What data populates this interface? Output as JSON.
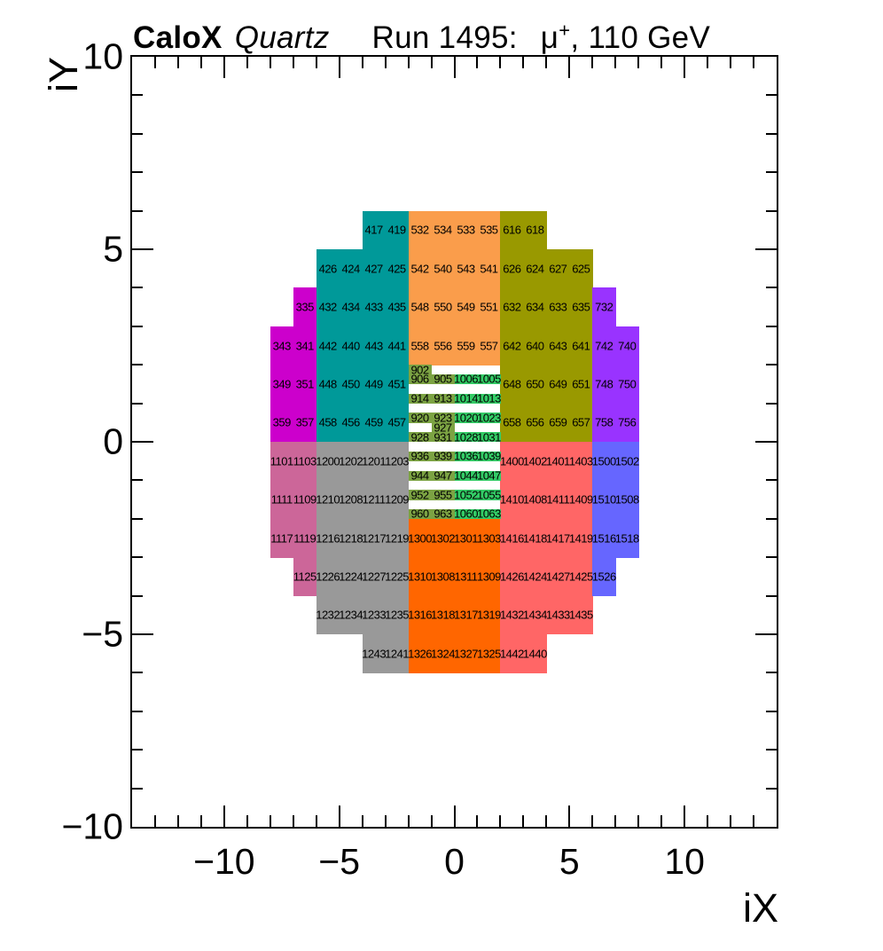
{
  "title": {
    "brand": "CaloX",
    "variant": "Quartz",
    "run": "Run 1495:",
    "particle": "μ",
    "particle_sup": "+",
    "energy": ", 110 GeV"
  },
  "chart_data": {
    "type": "heatmap",
    "title": "CaloX Quartz Run 1495: μ+, 110 GeV",
    "subtitle": "Calorimeter channel map colored by readout region, cells labeled by channel number",
    "xlabel": "iX",
    "ylabel": "iY",
    "xlim": [
      -14,
      14
    ],
    "ylim": [
      -10,
      10
    ],
    "grid": false,
    "x_ticks": [
      {
        "v": -10,
        "label": "−10"
      },
      {
        "v": -5,
        "label": "−5"
      },
      {
        "v": 0,
        "label": "0"
      },
      {
        "v": 5,
        "label": "5"
      },
      {
        "v": 10,
        "label": "10"
      }
    ],
    "y_ticks": [
      {
        "v": 10,
        "label": "10"
      },
      {
        "v": 5,
        "label": "5"
      },
      {
        "v": 0,
        "label": "0"
      },
      {
        "v": -5,
        "label": "−5"
      },
      {
        "v": -10,
        "label": "−10"
      }
    ],
    "minor_tick_step": 1,
    "regions": [
      {
        "name": "magenta-upper-left",
        "color": "#CC00CC",
        "h": 1,
        "cells": [
          [
            -7,
            3,
            "335"
          ],
          [
            -8,
            2,
            "343"
          ],
          [
            -7,
            2,
            "341"
          ],
          [
            -8,
            1,
            "349"
          ],
          [
            -7,
            1,
            "351"
          ],
          [
            -8,
            0,
            "359"
          ],
          [
            -7,
            0,
            "357"
          ]
        ]
      },
      {
        "name": "teal-upper-left",
        "color": "#009999",
        "h": 1,
        "cells": [
          [
            -4,
            5,
            "417"
          ],
          [
            -3,
            5,
            "419"
          ],
          [
            -6,
            4,
            "426"
          ],
          [
            -5,
            4,
            "424"
          ],
          [
            -4,
            4,
            "427"
          ],
          [
            -3,
            4,
            "425"
          ],
          [
            -6,
            3,
            "432"
          ],
          [
            -5,
            3,
            "434"
          ],
          [
            -4,
            3,
            "433"
          ],
          [
            -3,
            3,
            "435"
          ],
          [
            -6,
            2,
            "442"
          ],
          [
            -5,
            2,
            "440"
          ],
          [
            -4,
            2,
            "443"
          ],
          [
            -3,
            2,
            "441"
          ],
          [
            -6,
            1,
            "448"
          ],
          [
            -5,
            1,
            "450"
          ],
          [
            -4,
            1,
            "449"
          ],
          [
            -3,
            1,
            "451"
          ],
          [
            -6,
            0,
            "458"
          ],
          [
            -5,
            0,
            "456"
          ],
          [
            -4,
            0,
            "459"
          ],
          [
            -3,
            0,
            "457"
          ]
        ]
      },
      {
        "name": "orange-upper-center",
        "color": "#FA9D4B",
        "h": 1,
        "cells": [
          [
            -2,
            5,
            "532"
          ],
          [
            -1,
            5,
            "534"
          ],
          [
            0,
            5,
            "533"
          ],
          [
            1,
            5,
            "535"
          ],
          [
            -2,
            4,
            "542"
          ],
          [
            -1,
            4,
            "540"
          ],
          [
            0,
            4,
            "543"
          ],
          [
            1,
            4,
            "541"
          ],
          [
            -2,
            3,
            "548"
          ],
          [
            -1,
            3,
            "550"
          ],
          [
            0,
            3,
            "549"
          ],
          [
            1,
            3,
            "551"
          ],
          [
            -2,
            2,
            "558"
          ],
          [
            -1,
            2,
            "556"
          ],
          [
            0,
            2,
            "559"
          ],
          [
            1,
            2,
            "557"
          ]
        ]
      },
      {
        "name": "olive-upper-right",
        "color": "#999900",
        "h": 1,
        "cells": [
          [
            2,
            5,
            "616"
          ],
          [
            3,
            5,
            "618"
          ],
          [
            2,
            4,
            "626"
          ],
          [
            3,
            4,
            "624"
          ],
          [
            4,
            4,
            "627"
          ],
          [
            5,
            4,
            "625"
          ],
          [
            2,
            3,
            "632"
          ],
          [
            3,
            3,
            "634"
          ],
          [
            4,
            3,
            "633"
          ],
          [
            5,
            3,
            "635"
          ],
          [
            2,
            2,
            "642"
          ],
          [
            3,
            2,
            "640"
          ],
          [
            4,
            2,
            "643"
          ],
          [
            5,
            2,
            "641"
          ],
          [
            2,
            1,
            "648"
          ],
          [
            3,
            1,
            "650"
          ],
          [
            4,
            1,
            "649"
          ],
          [
            5,
            1,
            "651"
          ],
          [
            2,
            0,
            "658"
          ],
          [
            3,
            0,
            "656"
          ],
          [
            4,
            0,
            "659"
          ],
          [
            5,
            0,
            "657"
          ]
        ]
      },
      {
        "name": "purple-upper-right",
        "color": "#9933FF",
        "h": 1,
        "cells": [
          [
            6,
            3,
            "732"
          ],
          [
            6,
            2,
            "742"
          ],
          [
            7,
            2,
            "740"
          ],
          [
            6,
            1,
            "748"
          ],
          [
            7,
            1,
            "750"
          ],
          [
            6,
            0,
            "758"
          ],
          [
            7,
            0,
            "756"
          ]
        ]
      },
      {
        "name": "orchid-lower-left",
        "color": "#CC6699",
        "h": 1,
        "cells": [
          [
            -8,
            -1,
            "1101"
          ],
          [
            -7,
            -1,
            "1103"
          ],
          [
            -8,
            -2,
            "1111"
          ],
          [
            -7,
            -2,
            "1109"
          ],
          [
            -8,
            -3,
            "1117"
          ],
          [
            -7,
            -3,
            "1119"
          ],
          [
            -7,
            -4,
            "1125"
          ]
        ]
      },
      {
        "name": "gray-lower-left",
        "color": "#999999",
        "h": 1,
        "cells": [
          [
            -6,
            -1,
            "1200"
          ],
          [
            -5,
            -1,
            "1202"
          ],
          [
            -4,
            -1,
            "1201"
          ],
          [
            -3,
            -1,
            "1203"
          ],
          [
            -6,
            -2,
            "1210"
          ],
          [
            -5,
            -2,
            "1208"
          ],
          [
            -4,
            -2,
            "1211"
          ],
          [
            -3,
            -2,
            "1209"
          ],
          [
            -6,
            -3,
            "1216"
          ],
          [
            -5,
            -3,
            "1218"
          ],
          [
            -4,
            -3,
            "1217"
          ],
          [
            -3,
            -3,
            "1219"
          ],
          [
            -6,
            -4,
            "1226"
          ],
          [
            -5,
            -4,
            "1224"
          ],
          [
            -4,
            -4,
            "1227"
          ],
          [
            -3,
            -4,
            "1225"
          ],
          [
            -6,
            -5,
            "1232"
          ],
          [
            -5,
            -5,
            "1234"
          ],
          [
            -4,
            -5,
            "1233"
          ],
          [
            -3,
            -5,
            "1235"
          ],
          [
            -4,
            -6,
            "1243"
          ],
          [
            -3,
            -6,
            "1241"
          ]
        ]
      },
      {
        "name": "orange-lower-center",
        "color": "#FF6600",
        "h": 1,
        "cells": [
          [
            -2,
            -3,
            "1300"
          ],
          [
            -1,
            -3,
            "1302"
          ],
          [
            0,
            -3,
            "1301"
          ],
          [
            1,
            -3,
            "1303"
          ],
          [
            -2,
            -4,
            "1310"
          ],
          [
            -1,
            -4,
            "1308"
          ],
          [
            0,
            -4,
            "1311"
          ],
          [
            1,
            -4,
            "1309"
          ],
          [
            -2,
            -5,
            "1316"
          ],
          [
            -1,
            -5,
            "1318"
          ],
          [
            0,
            -5,
            "1317"
          ],
          [
            1,
            -5,
            "1319"
          ],
          [
            -2,
            -6,
            "1326"
          ],
          [
            -1,
            -6,
            "1324"
          ],
          [
            0,
            -6,
            "1327"
          ],
          [
            1,
            -6,
            "1325"
          ]
        ]
      },
      {
        "name": "red-lower-right",
        "color": "#FF6666",
        "h": 1,
        "cells": [
          [
            2,
            -1,
            "1400"
          ],
          [
            3,
            -1,
            "1402"
          ],
          [
            4,
            -1,
            "1401"
          ],
          [
            5,
            -1,
            "1403"
          ],
          [
            2,
            -2,
            "1410"
          ],
          [
            3,
            -2,
            "1408"
          ],
          [
            4,
            -2,
            "1411"
          ],
          [
            5,
            -2,
            "1409"
          ],
          [
            2,
            -3,
            "1416"
          ],
          [
            3,
            -3,
            "1418"
          ],
          [
            4,
            -3,
            "1417"
          ],
          [
            5,
            -3,
            "1419"
          ],
          [
            2,
            -4,
            "1426"
          ],
          [
            3,
            -4,
            "1424"
          ],
          [
            4,
            -4,
            "1427"
          ],
          [
            5,
            -4,
            "1425"
          ],
          [
            2,
            -5,
            "1432"
          ],
          [
            3,
            -5,
            "1434"
          ],
          [
            4,
            -5,
            "1433"
          ],
          [
            5,
            -5,
            "1435"
          ],
          [
            2,
            -6,
            "1442"
          ],
          [
            3,
            -6,
            "1440"
          ]
        ]
      },
      {
        "name": "blue-lower-right",
        "color": "#6666FF",
        "h": 1,
        "cells": [
          [
            6,
            -1,
            "1500"
          ],
          [
            7,
            -1,
            "1502"
          ],
          [
            6,
            -2,
            "1510"
          ],
          [
            7,
            -2,
            "1508"
          ],
          [
            6,
            -3,
            "1516"
          ],
          [
            7,
            -3,
            "1518"
          ],
          [
            6,
            -4,
            "1526"
          ]
        ]
      },
      {
        "name": "olive-small-center-left-columns",
        "color": "#7CA343",
        "h": 0.25,
        "cells": [
          [
            -2,
            1.75,
            "902"
          ],
          [
            -2,
            1.5,
            "906"
          ],
          [
            -1,
            1.5,
            "905"
          ],
          [
            -2,
            1.0,
            "914"
          ],
          [
            -1,
            1.0,
            "913"
          ],
          [
            -2,
            0.5,
            "920"
          ],
          [
            -1,
            0.5,
            "923"
          ],
          [
            -1,
            0.25,
            "927"
          ],
          [
            -2,
            0.0,
            "928"
          ],
          [
            -1,
            0.0,
            "931"
          ],
          [
            -2,
            -0.5,
            "936"
          ],
          [
            -1,
            -0.5,
            "939"
          ],
          [
            -2,
            -1.0,
            "944"
          ],
          [
            -1,
            -1.0,
            "947"
          ],
          [
            -2,
            -1.5,
            "952"
          ],
          [
            -1,
            -1.5,
            "955"
          ],
          [
            -2,
            -2.0,
            "960"
          ],
          [
            -1,
            -2.0,
            "963"
          ]
        ]
      },
      {
        "name": "green-small-center-right-columns",
        "color": "#33CC66",
        "h": 0.25,
        "cells": [
          [
            0,
            1.5,
            "1006"
          ],
          [
            1,
            1.5,
            "1005"
          ],
          [
            0,
            1.0,
            "1014"
          ],
          [
            1,
            1.0,
            "1013"
          ],
          [
            0,
            0.5,
            "1020"
          ],
          [
            1,
            0.5,
            "1023"
          ],
          [
            0,
            0.0,
            "1028"
          ],
          [
            1,
            0.0,
            "1031"
          ],
          [
            0,
            -0.5,
            "1036"
          ],
          [
            1,
            -0.5,
            "1039"
          ],
          [
            0,
            -1.0,
            "1044"
          ],
          [
            1,
            -1.0,
            "1047"
          ],
          [
            0,
            -1.5,
            "1052"
          ],
          [
            1,
            -1.5,
            "1055"
          ],
          [
            0,
            -2.0,
            "1060"
          ],
          [
            1,
            -2.0,
            "1063"
          ]
        ]
      }
    ]
  }
}
